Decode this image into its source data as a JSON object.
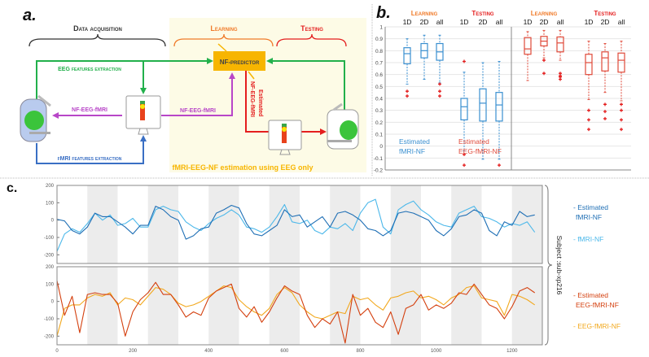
{
  "panel_a": {
    "label": "a.",
    "data_acquisition": "Data acquisition",
    "learning": "Learning",
    "testing": "Testing",
    "predictor": "NF-predictor",
    "eeg_extraction": "EEG features extraction",
    "fmri_extraction": "fMRI features extraction",
    "nf_left": "NF-EEG-fMRI",
    "nf_mid": "NF-EEG-fMRI",
    "estimated_line1": "Estimated",
    "estimated_line2": "NF-EEG-fMRI",
    "footer": "fMRI-EEG-NF estimation using EEG only",
    "colors": {
      "eeg": "#22b04b",
      "fmri": "#3a6fc4",
      "nf": "#b846c8",
      "estimated": "#e41e1e",
      "predictor": "#f7b500",
      "learning": "#f07b2a",
      "box_bg": "#fdfbe6"
    }
  },
  "chart_data": [
    {
      "type": "box",
      "panel_label": "b.",
      "ylim": [
        -0.2,
        1
      ],
      "yticks": [
        "1",
        "0.9",
        "0.8",
        "0.7",
        "0.6",
        "0.5",
        "0.4",
        "0.3",
        "0.2",
        "0.1",
        "0",
        "-0.1",
        "-0.2"
      ],
      "groups": [
        {
          "phase": "Learning",
          "phase_color": "#f07b2a",
          "set": "Estimated fMRI-NF",
          "color": "#3a8fd0",
          "boxes": [
            {
              "label": "1D",
              "q1": 0.69,
              "median": 0.775,
              "q3": 0.825,
              "lo": 0.52,
              "hi": 0.9,
              "outliers": [
                0.46,
                0.42
              ]
            },
            {
              "label": "2D",
              "q1": 0.74,
              "median": 0.8,
              "q3": 0.86,
              "lo": 0.56,
              "hi": 0.93,
              "outliers": []
            },
            {
              "label": "all",
              "q1": 0.72,
              "median": 0.79,
              "q3": 0.86,
              "lo": 0.53,
              "hi": 0.93,
              "outliers": [
                0.52,
                0.46,
                0.42
              ]
            }
          ]
        },
        {
          "phase": "Testing",
          "phase_color": "#e41e1e",
          "set": "Estimated fMRI-NF",
          "color": "#3a8fd0",
          "boxes": [
            {
              "label": "1D",
              "q1": 0.22,
              "median": 0.33,
              "q3": 0.4,
              "lo": -0.04,
              "hi": 0.62,
              "outliers": [
                0.71,
                -0.07,
                -0.16
              ]
            },
            {
              "label": "2D",
              "q1": 0.21,
              "median": 0.36,
              "q3": 0.48,
              "lo": -0.11,
              "hi": 0.7,
              "outliers": []
            },
            {
              "label": "all",
              "q1": 0.21,
              "median": 0.345,
              "q3": 0.45,
              "lo": -0.11,
              "hi": 0.71,
              "outliers": [
                -0.16
              ]
            }
          ]
        },
        {
          "phase": "Learning",
          "phase_color": "#f07b2a",
          "set": "Estimated EEG-fMRI-NF",
          "color": "#e04a3a",
          "boxes": [
            {
              "label": "1D",
              "q1": 0.77,
              "median": 0.815,
              "q3": 0.91,
              "lo": 0.55,
              "hi": 0.96,
              "outliers": []
            },
            {
              "label": "2D",
              "q1": 0.84,
              "median": 0.88,
              "q3": 0.92,
              "lo": 0.74,
              "hi": 0.97,
              "outliers": [
                0.72,
                0.61
              ]
            },
            {
              "label": "all",
              "q1": 0.79,
              "median": 0.865,
              "q3": 0.915,
              "lo": 0.72,
              "hi": 0.97,
              "outliers": [
                0.61,
                0.59,
                0.58,
                0.56
              ]
            }
          ]
        },
        {
          "phase": "Testing",
          "phase_color": "#e41e1e",
          "set": "Estimated EEG-fMRI-NF",
          "color": "#e04a3a",
          "boxes": [
            {
              "label": "1D",
              "q1": 0.6,
              "median": 0.7,
              "q3": 0.77,
              "lo": 0.39,
              "hi": 0.88,
              "outliers": [
                0.3,
                0.22,
                0.14
              ]
            },
            {
              "label": "2D",
              "q1": 0.63,
              "median": 0.74,
              "q3": 0.79,
              "lo": 0.45,
              "hi": 0.86,
              "outliers": [
                0.35,
                0.29,
                0.23
              ]
            },
            {
              "label": "all",
              "q1": 0.62,
              "median": 0.72,
              "q3": 0.78,
              "lo": 0.38,
              "hi": 0.88,
              "outliers": [
                0.35,
                0.3,
                0.22,
                0.14
              ]
            }
          ]
        }
      ],
      "set_labels": [
        {
          "line1": "Estimated",
          "line2": "fMRI-NF",
          "color": "#3a8fd0"
        },
        {
          "line1": "Estimated",
          "line2": "EEG-fMRI-NF",
          "color": "#e04a3a"
        }
      ],
      "outlier_color": "#e41e1e",
      "grid": true
    },
    {
      "type": "line",
      "panel_label": "c.",
      "xlim": [
        0,
        1280
      ],
      "ylim": [
        -250,
        200
      ],
      "xticks": [
        "0",
        "200",
        "400",
        "600",
        "800",
        "1000",
        "1200"
      ],
      "yticks": [
        "200",
        "100",
        "0",
        "-100",
        "-200"
      ],
      "shaded_intervals": [
        [
          80,
          160
        ],
        [
          240,
          320
        ],
        [
          400,
          480
        ],
        [
          560,
          640
        ],
        [
          720,
          800
        ],
        [
          880,
          960
        ],
        [
          1040,
          1120
        ],
        [
          1200,
          1280
        ]
      ],
      "subject_label": "Subject :sub-xp216",
      "x": [
        0,
        20,
        40,
        60,
        80,
        100,
        120,
        140,
        160,
        180,
        200,
        220,
        240,
        260,
        280,
        300,
        320,
        340,
        360,
        380,
        400,
        420,
        440,
        460,
        480,
        500,
        520,
        540,
        560,
        580,
        600,
        620,
        640,
        660,
        680,
        700,
        720,
        740,
        760,
        780,
        800,
        820,
        840,
        860,
        880,
        900,
        920,
        940,
        960,
        980,
        1000,
        1020,
        1040,
        1060,
        1080,
        1100,
        1120,
        1140,
        1160,
        1180,
        1200,
        1220,
        1240,
        1260
      ],
      "subplots": [
        {
          "series": [
            {
              "name": "- Estimated fMRI-NF",
              "line1": "- Estimated",
              "line2": "fMRI-NF",
              "color": "#1f6fb5",
              "values": [
                5,
                -5,
                -60,
                -80,
                -40,
                40,
                20,
                20,
                -10,
                -40,
                -80,
                -30,
                -30,
                80,
                60,
                20,
                0,
                -110,
                -90,
                -50,
                -40,
                40,
                60,
                85,
                70,
                -20,
                -80,
                -90,
                -60,
                -30,
                60,
                20,
                30,
                -40,
                -10,
                20,
                -40,
                40,
                50,
                30,
                0,
                -50,
                -60,
                -90,
                -60,
                40,
                50,
                40,
                20,
                0,
                -60,
                -90,
                -50,
                20,
                30,
                60,
                40,
                -60,
                -90,
                -10,
                -30,
                50,
                20,
                30
              ]
            },
            {
              "name": "- fMRI-NF",
              "line1": "- fMRI-NF",
              "line2": "",
              "color": "#4cb8ea",
              "values": [
                -180,
                -80,
                -50,
                -70,
                -20,
                40,
                0,
                30,
                -30,
                -20,
                10,
                -40,
                -40,
                60,
                80,
                60,
                50,
                -10,
                -40,
                -60,
                -20,
                10,
                30,
                60,
                30,
                -40,
                -50,
                -70,
                -40,
                20,
                90,
                -10,
                -20,
                0,
                -60,
                -80,
                -40,
                -50,
                -20,
                -60,
                40,
                100,
                120,
                -40,
                -80,
                60,
                90,
                110,
                60,
                30,
                -10,
                -30,
                -40,
                40,
                60,
                80,
                20,
                10,
                -10,
                -40,
                -20,
                -30,
                -10,
                -70
              ]
            }
          ]
        },
        {
          "series": [
            {
              "name": "- Estimated EEG-fMRI-NF",
              "line1": "- Estimated",
              "line2": "EEG-fMRI-NF",
              "color": "#d4400f",
              "values": [
                120,
                -80,
                30,
                -180,
                40,
                50,
                40,
                40,
                -10,
                -200,
                -60,
                10,
                50,
                110,
                40,
                40,
                -20,
                -90,
                -60,
                -80,
                20,
                60,
                80,
                100,
                -40,
                -90,
                -30,
                -120,
                -60,
                20,
                90,
                60,
                40,
                -80,
                -150,
                -100,
                -130,
                -60,
                -240,
                40,
                -80,
                -40,
                -120,
                -150,
                -60,
                -190,
                -40,
                -20,
                40,
                -50,
                -20,
                -40,
                -10,
                50,
                40,
                100,
                40,
                -20,
                -40,
                -100,
                -30,
                60,
                80,
                50
              ]
            },
            {
              "name": "- EEG-fMRI-NF",
              "line1": "- EEG-fMRI-NF",
              "line2": "",
              "color": "#f2a81d",
              "values": [
                -200,
                -40,
                -20,
                -20,
                20,
                40,
                30,
                50,
                -20,
                20,
                10,
                -20,
                30,
                80,
                70,
                40,
                -10,
                -30,
                -20,
                0,
                30,
                60,
                90,
                80,
                10,
                -30,
                -60,
                -80,
                -40,
                40,
                80,
                50,
                -20,
                -60,
                -90,
                -100,
                -80,
                -60,
                -70,
                30,
                10,
                20,
                -20,
                -50,
                20,
                30,
                50,
                60,
                20,
                30,
                10,
                -20,
                20,
                40,
                80,
                90,
                20,
                10,
                0,
                -80,
                40,
                30,
                10,
                -20
              ]
            }
          ]
        }
      ]
    }
  ]
}
